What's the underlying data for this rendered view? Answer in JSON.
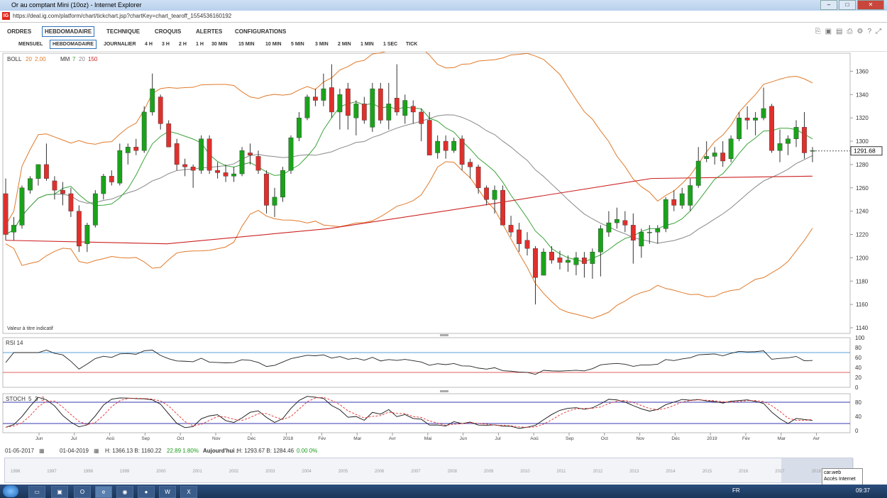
{
  "window": {
    "title": "Or au comptant Mini (10oz) - Internet Explorer",
    "url": "https://deal.ig.com/platform/chart/tickchart.jsp?chartKey=chart_tearoff_1554536160192"
  },
  "menu": [
    "ORDRES",
    "HEBDOMADAIRE",
    "TECHNIQUE",
    "CROQUIS",
    "ALERTES",
    "CONFIGURATIONS"
  ],
  "timeframes": [
    "MENSUEL",
    "HEBDOMADAIRE",
    "JOURNALIER",
    "4 H",
    "3 H",
    "2 H",
    "1 H",
    "30 MIN",
    "15 MIN",
    "10 MIN",
    "5 MIN",
    "3 MIN",
    "2 MIN",
    "1 MIN",
    "1 SEC",
    "TICK"
  ],
  "selected_timeframe": "HEBDOMADAIRE",
  "legend": {
    "boll_label": "BOLL",
    "boll_p1": "20",
    "boll_p2": "2.00",
    "mm_label": "MM",
    "mm_p1": "7",
    "mm_p2": "20",
    "mm_p3": "150",
    "note": "Valeur à titre indicatif"
  },
  "rsi_label": "RSI 14",
  "stoch_label": "STOCH",
  "stoch_p1": "5",
  "stoch_p2": "3",
  "stoch_p3": "3",
  "current_price": "1291.68",
  "colors": {
    "up": "#1aa31a",
    "down": "#e0302c",
    "boll": "#e07a2a",
    "mm7": "#3aa33a",
    "mm20": "#888888",
    "mm150": "#cc2222"
  },
  "bottom": {
    "from": "01-05-2017",
    "to": "01-04-2019",
    "stats": "H: 1366.13  B: 1160.22",
    "change": "22.89  1.80%",
    "today_label": "Aujourd'hui :",
    "today": "H: 1293.67  B: 1284.46",
    "today_change": "0.00  0%"
  },
  "tooltip": [
    "car.web",
    "Accès Internet"
  ],
  "nav_years": [
    "1996",
    "1997",
    "1998",
    "1999",
    "2000",
    "2001",
    "2002",
    "2003",
    "2004",
    "2005",
    "2006",
    "2007",
    "2008",
    "2009",
    "2010",
    "2011",
    "2012",
    "2013",
    "2014",
    "2015",
    "2016",
    "2017",
    "2018"
  ],
  "taskbar": {
    "lang": "FR",
    "time": "09:37"
  },
  "chart_data": {
    "type": "candlestick",
    "title": "Or au comptant Mini (10oz) - Hebdomadaire",
    "ylim": [
      1140,
      1370
    ],
    "yticks": [
      1140,
      1160,
      1180,
      1200,
      1220,
      1240,
      1260,
      1280,
      1300,
      1320,
      1340,
      1360
    ],
    "x_labels": [
      "Jun",
      "Jul",
      "Aoû",
      "Sep",
      "Oct",
      "Nov",
      "Déc",
      "2018",
      "Fév",
      "Mar",
      "Avr",
      "Mai",
      "Jun",
      "Jul",
      "Aoû",
      "Sep",
      "Oct",
      "Nov",
      "Déc",
      "2019",
      "Fév",
      "Mar",
      "Avr"
    ],
    "candles": [
      {
        "o": 1255,
        "h": 1268,
        "l": 1215,
        "c": 1220
      },
      {
        "o": 1222,
        "h": 1235,
        "l": 1215,
        "c": 1228
      },
      {
        "o": 1228,
        "h": 1262,
        "l": 1225,
        "c": 1260
      },
      {
        "o": 1258,
        "h": 1270,
        "l": 1255,
        "c": 1268
      },
      {
        "o": 1268,
        "h": 1280,
        "l": 1262,
        "c": 1280
      },
      {
        "o": 1280,
        "h": 1298,
        "l": 1266,
        "c": 1268
      },
      {
        "o": 1266,
        "h": 1270,
        "l": 1250,
        "c": 1258
      },
      {
        "o": 1258,
        "h": 1265,
        "l": 1245,
        "c": 1255
      },
      {
        "o": 1255,
        "h": 1260,
        "l": 1235,
        "c": 1240
      },
      {
        "o": 1240,
        "h": 1245,
        "l": 1205,
        "c": 1210
      },
      {
        "o": 1212,
        "h": 1230,
        "l": 1205,
        "c": 1228
      },
      {
        "o": 1228,
        "h": 1258,
        "l": 1226,
        "c": 1255
      },
      {
        "o": 1255,
        "h": 1272,
        "l": 1250,
        "c": 1270
      },
      {
        "o": 1270,
        "h": 1275,
        "l": 1262,
        "c": 1265
      },
      {
        "o": 1264,
        "h": 1298,
        "l": 1262,
        "c": 1292
      },
      {
        "o": 1290,
        "h": 1298,
        "l": 1280,
        "c": 1295
      },
      {
        "o": 1295,
        "h": 1302,
        "l": 1288,
        "c": 1292
      },
      {
        "o": 1292,
        "h": 1330,
        "l": 1290,
        "c": 1325
      },
      {
        "o": 1325,
        "h": 1358,
        "l": 1322,
        "c": 1345
      },
      {
        "o": 1338,
        "h": 1340,
        "l": 1310,
        "c": 1315
      },
      {
        "o": 1315,
        "h": 1318,
        "l": 1295,
        "c": 1295
      },
      {
        "o": 1298,
        "h": 1302,
        "l": 1275,
        "c": 1280
      },
      {
        "o": 1280,
        "h": 1285,
        "l": 1270,
        "c": 1278
      },
      {
        "o": 1278,
        "h": 1280,
        "l": 1260,
        "c": 1275
      },
      {
        "o": 1275,
        "h": 1305,
        "l": 1272,
        "c": 1302
      },
      {
        "o": 1302,
        "h": 1305,
        "l": 1272,
        "c": 1275
      },
      {
        "o": 1275,
        "h": 1282,
        "l": 1268,
        "c": 1273
      },
      {
        "o": 1273,
        "h": 1280,
        "l": 1265,
        "c": 1270
      },
      {
        "o": 1270,
        "h": 1278,
        "l": 1265,
        "c": 1272
      },
      {
        "o": 1272,
        "h": 1295,
        "l": 1270,
        "c": 1292
      },
      {
        "o": 1290,
        "h": 1298,
        "l": 1280,
        "c": 1288
      },
      {
        "o": 1287,
        "h": 1292,
        "l": 1272,
        "c": 1275
      },
      {
        "o": 1272,
        "h": 1275,
        "l": 1238,
        "c": 1245
      },
      {
        "o": 1245,
        "h": 1260,
        "l": 1235,
        "c": 1252
      },
      {
        "o": 1252,
        "h": 1278,
        "l": 1248,
        "c": 1275
      },
      {
        "o": 1275,
        "h": 1305,
        "l": 1272,
        "c": 1303
      },
      {
        "o": 1303,
        "h": 1325,
        "l": 1300,
        "c": 1320
      },
      {
        "o": 1320,
        "h": 1340,
        "l": 1318,
        "c": 1338
      },
      {
        "o": 1338,
        "h": 1345,
        "l": 1330,
        "c": 1335
      },
      {
        "o": 1335,
        "h": 1358,
        "l": 1330,
        "c": 1345
      },
      {
        "o": 1346,
        "h": 1366,
        "l": 1320,
        "c": 1325
      },
      {
        "o": 1325,
        "h": 1345,
        "l": 1310,
        "c": 1340
      },
      {
        "o": 1345,
        "h": 1350,
        "l": 1310,
        "c": 1322
      },
      {
        "o": 1320,
        "h": 1335,
        "l": 1305,
        "c": 1332
      },
      {
        "o": 1332,
        "h": 1338,
        "l": 1315,
        "c": 1318
      },
      {
        "o": 1312,
        "h": 1350,
        "l": 1308,
        "c": 1345
      },
      {
        "o": 1345,
        "h": 1350,
        "l": 1315,
        "c": 1318
      },
      {
        "o": 1318,
        "h": 1350,
        "l": 1310,
        "c": 1332
      },
      {
        "o": 1337,
        "h": 1366,
        "l": 1322,
        "c": 1325
      },
      {
        "o": 1322,
        "h": 1340,
        "l": 1315,
        "c": 1335
      },
      {
        "o": 1330,
        "h": 1335,
        "l": 1315,
        "c": 1325
      },
      {
        "o": 1325,
        "h": 1328,
        "l": 1300,
        "c": 1315
      },
      {
        "o": 1318,
        "h": 1325,
        "l": 1290,
        "c": 1288
      },
      {
        "o": 1290,
        "h": 1305,
        "l": 1285,
        "c": 1300
      },
      {
        "o": 1300,
        "h": 1305,
        "l": 1285,
        "c": 1292
      },
      {
        "o": 1292,
        "h": 1303,
        "l": 1290,
        "c": 1300
      },
      {
        "o": 1302,
        "h": 1305,
        "l": 1275,
        "c": 1280
      },
      {
        "o": 1282,
        "h": 1285,
        "l": 1268,
        "c": 1278
      },
      {
        "o": 1278,
        "h": 1280,
        "l": 1255,
        "c": 1260
      },
      {
        "o": 1260,
        "h": 1262,
        "l": 1245,
        "c": 1250
      },
      {
        "o": 1250,
        "h": 1262,
        "l": 1238,
        "c": 1258
      },
      {
        "o": 1258,
        "h": 1262,
        "l": 1228,
        "c": 1228
      },
      {
        "o": 1228,
        "h": 1236,
        "l": 1218,
        "c": 1222
      },
      {
        "o": 1224,
        "h": 1230,
        "l": 1205,
        "c": 1212
      },
      {
        "o": 1215,
        "h": 1222,
        "l": 1202,
        "c": 1208
      },
      {
        "o": 1208,
        "h": 1210,
        "l": 1160,
        "c": 1183
      },
      {
        "o": 1185,
        "h": 1208,
        "l": 1185,
        "c": 1205
      },
      {
        "o": 1205,
        "h": 1210,
        "l": 1195,
        "c": 1198
      },
      {
        "o": 1200,
        "h": 1206,
        "l": 1190,
        "c": 1196
      },
      {
        "o": 1196,
        "h": 1202,
        "l": 1188,
        "c": 1198
      },
      {
        "o": 1194,
        "h": 1205,
        "l": 1185,
        "c": 1200
      },
      {
        "o": 1200,
        "h": 1205,
        "l": 1183,
        "c": 1195
      },
      {
        "o": 1195,
        "h": 1208,
        "l": 1182,
        "c": 1205
      },
      {
        "o": 1205,
        "h": 1228,
        "l": 1184,
        "c": 1225
      },
      {
        "o": 1222,
        "h": 1240,
        "l": 1218,
        "c": 1230
      },
      {
        "o": 1230,
        "h": 1243,
        "l": 1225,
        "c": 1233
      },
      {
        "o": 1232,
        "h": 1240,
        "l": 1222,
        "c": 1228
      },
      {
        "o": 1228,
        "h": 1238,
        "l": 1195,
        "c": 1215
      },
      {
        "o": 1210,
        "h": 1225,
        "l": 1200,
        "c": 1222
      },
      {
        "o": 1222,
        "h": 1228,
        "l": 1212,
        "c": 1222
      },
      {
        "o": 1222,
        "h": 1228,
        "l": 1212,
        "c": 1225
      },
      {
        "o": 1225,
        "h": 1252,
        "l": 1222,
        "c": 1250
      },
      {
        "o": 1250,
        "h": 1258,
        "l": 1240,
        "c": 1245
      },
      {
        "o": 1245,
        "h": 1260,
        "l": 1242,
        "c": 1255
      },
      {
        "o": 1245,
        "h": 1268,
        "l": 1240,
        "c": 1262
      },
      {
        "o": 1262,
        "h": 1295,
        "l": 1260,
        "c": 1283
      },
      {
        "o": 1285,
        "h": 1300,
        "l": 1282,
        "c": 1287
      },
      {
        "o": 1287,
        "h": 1295,
        "l": 1280,
        "c": 1290
      },
      {
        "o": 1290,
        "h": 1300,
        "l": 1278,
        "c": 1283
      },
      {
        "o": 1285,
        "h": 1305,
        "l": 1282,
        "c": 1302
      },
      {
        "o": 1302,
        "h": 1325,
        "l": 1300,
        "c": 1320
      },
      {
        "o": 1320,
        "h": 1330,
        "l": 1310,
        "c": 1318
      },
      {
        "o": 1318,
        "h": 1325,
        "l": 1305,
        "c": 1320
      },
      {
        "o": 1320,
        "h": 1346,
        "l": 1318,
        "c": 1328
      },
      {
        "o": 1330,
        "h": 1332,
        "l": 1290,
        "c": 1292
      },
      {
        "o": 1292,
        "h": 1310,
        "l": 1282,
        "c": 1298
      },
      {
        "o": 1298,
        "h": 1305,
        "l": 1288,
        "c": 1302
      },
      {
        "o": 1302,
        "h": 1318,
        "l": 1295,
        "c": 1312
      },
      {
        "o": 1312,
        "h": 1325,
        "l": 1285,
        "c": 1290
      },
      {
        "o": 1292,
        "h": 1295,
        "l": 1282,
        "c": 1292
      }
    ],
    "mm150": [
      [
        0,
        1215
      ],
      [
        20,
        1212
      ],
      [
        40,
        1225
      ],
      [
        60,
        1246
      ],
      [
        80,
        1268
      ],
      [
        100,
        1270
      ]
    ],
    "rsi_levels": [
      30,
      70
    ],
    "stoch_levels": [
      20,
      80
    ]
  }
}
